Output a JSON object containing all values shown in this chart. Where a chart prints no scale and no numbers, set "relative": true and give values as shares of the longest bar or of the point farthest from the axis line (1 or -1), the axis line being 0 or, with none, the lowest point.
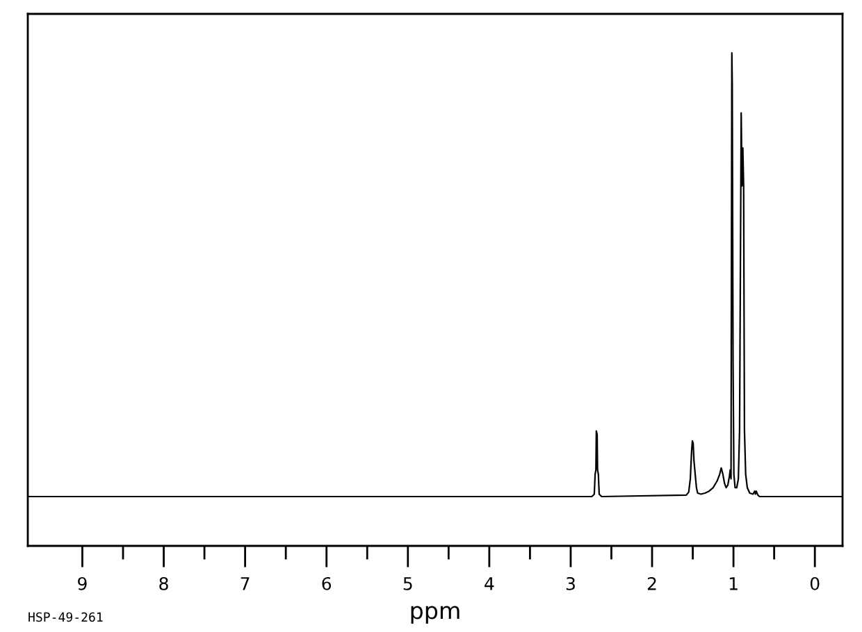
{
  "chart_data": {
    "type": "line",
    "xlabel": "ppm",
    "relative": true,
    "tick_labels": "x",
    "xlim": [
      9.67,
      -0.34
    ],
    "xticks": [
      9,
      {
        "value": 8.5,
        "label": null
      },
      8,
      {
        "value": 7.5,
        "label": null
      },
      7,
      {
        "value": 6.5,
        "label": null
      },
      6,
      {
        "value": 5.5,
        "label": null
      },
      5,
      {
        "value": 4.5,
        "label": null
      },
      4,
      {
        "value": 3.5,
        "label": null
      },
      3,
      {
        "value": 2.5,
        "label": null
      },
      2,
      {
        "value": 1.5,
        "label": null
      },
      1,
      {
        "value": 0.5,
        "label": null
      },
      0
    ],
    "annotations": [
      "HSP-49-261"
    ],
    "series": [
      {
        "color": "#000000",
        "x": [
          9.66,
          2.74,
          2.71,
          2.7,
          2.69,
          2.685,
          2.675,
          2.67,
          2.66,
          2.65,
          2.62,
          1.58,
          1.55,
          1.53,
          1.515,
          1.505,
          1.495,
          1.485,
          1.47,
          1.455,
          1.44,
          1.4,
          1.35,
          1.3,
          1.25,
          1.2,
          1.17,
          1.15,
          1.13,
          1.11,
          1.09,
          1.07,
          1.05,
          1.04,
          1.03,
          1.02,
          1.015,
          1.005,
          0.995,
          0.98,
          0.96,
          0.94,
          0.925,
          0.905,
          0.895,
          0.885,
          0.875,
          0.865,
          0.85,
          0.83,
          0.8,
          0.76,
          0.74,
          0.73,
          0.72,
          0.7,
          0.68,
          -0.33
        ],
        "values": [
          0.1,
          0.1,
          0.105,
          0.145,
          0.154,
          0.233,
          0.226,
          0.154,
          0.145,
          0.105,
          0.1,
          0.103,
          0.109,
          0.136,
          0.19,
          0.213,
          0.208,
          0.172,
          0.145,
          0.118,
          0.107,
          0.105,
          0.107,
          0.111,
          0.118,
          0.132,
          0.145,
          0.158,
          0.145,
          0.127,
          0.118,
          0.123,
          0.141,
          0.154,
          0.136,
          1.0,
          0.937,
          0.37,
          0.145,
          0.118,
          0.118,
          0.136,
          0.235,
          0.878,
          0.73,
          0.807,
          0.73,
          0.235,
          0.145,
          0.118,
          0.107,
          0.105,
          0.111,
          0.105,
          0.111,
          0.103,
          0.1,
          0.1
        ]
      }
    ]
  }
}
